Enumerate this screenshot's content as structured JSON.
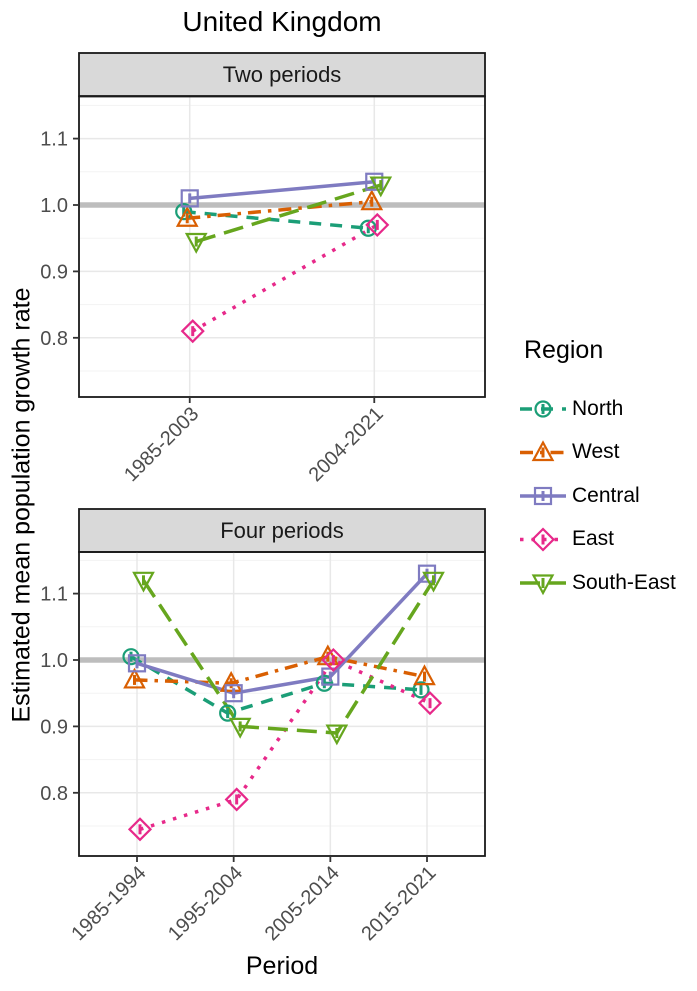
{
  "title": "United Kingdom",
  "y_axis_title": "Estimated mean population growth rate",
  "x_axis_title": "Period",
  "legend": {
    "title": "Region",
    "items": [
      {
        "label": "North",
        "color": "#1b9e77",
        "marker": "circle",
        "dash": "dashed"
      },
      {
        "label": "West",
        "color": "#d95f02",
        "marker": "triangle-up",
        "dash": "dashdot"
      },
      {
        "label": "Central",
        "color": "#7f7bc1",
        "marker": "square",
        "dash": "solid"
      },
      {
        "label": "East",
        "color": "#e7298a",
        "marker": "diamond",
        "dash": "dotted"
      },
      {
        "label": "South-East",
        "color": "#66a61e",
        "marker": "triangle-down",
        "dash": "longdash"
      }
    ]
  },
  "chart_data": [
    {
      "type": "line",
      "facet_label": "Two periods",
      "categories": [
        "1985-2003",
        "2004-2021"
      ],
      "series": [
        {
          "name": "North",
          "values": [
            0.99,
            0.965
          ]
        },
        {
          "name": "West",
          "values": [
            0.98,
            1.005
          ]
        },
        {
          "name": "Central",
          "values": [
            1.01,
            1.035
          ]
        },
        {
          "name": "East",
          "values": [
            0.81,
            0.97
          ]
        },
        {
          "name": "South-East",
          "values": [
            0.945,
            1.03
          ]
        }
      ],
      "yticks": [
        0.8,
        0.9,
        1.0,
        1.1
      ],
      "ylim": [
        0.711,
        1.163
      ],
      "reference_line": 1.0,
      "grid": true,
      "legend_position": "right"
    },
    {
      "type": "line",
      "facet_label": "Four periods",
      "categories": [
        "1985-1994",
        "1995-2004",
        "2005-2014",
        "2015-2021"
      ],
      "series": [
        {
          "name": "North",
          "values": [
            1.005,
            0.92,
            0.965,
            0.955
          ]
        },
        {
          "name": "West",
          "values": [
            0.97,
            0.965,
            1.005,
            0.975
          ]
        },
        {
          "name": "Central",
          "values": [
            0.995,
            0.95,
            0.975,
            1.13
          ]
        },
        {
          "name": "East",
          "values": [
            0.745,
            0.79,
            1.0,
            0.935
          ]
        },
        {
          "name": "South-East",
          "values": [
            1.12,
            0.9,
            0.89,
            1.12
          ]
        }
      ],
      "yticks": [
        0.8,
        0.9,
        1.0,
        1.1
      ],
      "ylim": [
        0.705,
        1.163
      ],
      "reference_line": 1.0,
      "grid": true,
      "legend_position": "right"
    }
  ],
  "styles": {
    "reference_line_color": "#bdbdbd",
    "major_grid_color": "#e8e8e8",
    "minor_grid_color": "#f3f3f3",
    "panel_border_color": "#1a1a1a",
    "strip_fill_color": "#d9d9d9",
    "tick_label_color": "#4d4d4d",
    "axis_tick_color": "#333333"
  }
}
